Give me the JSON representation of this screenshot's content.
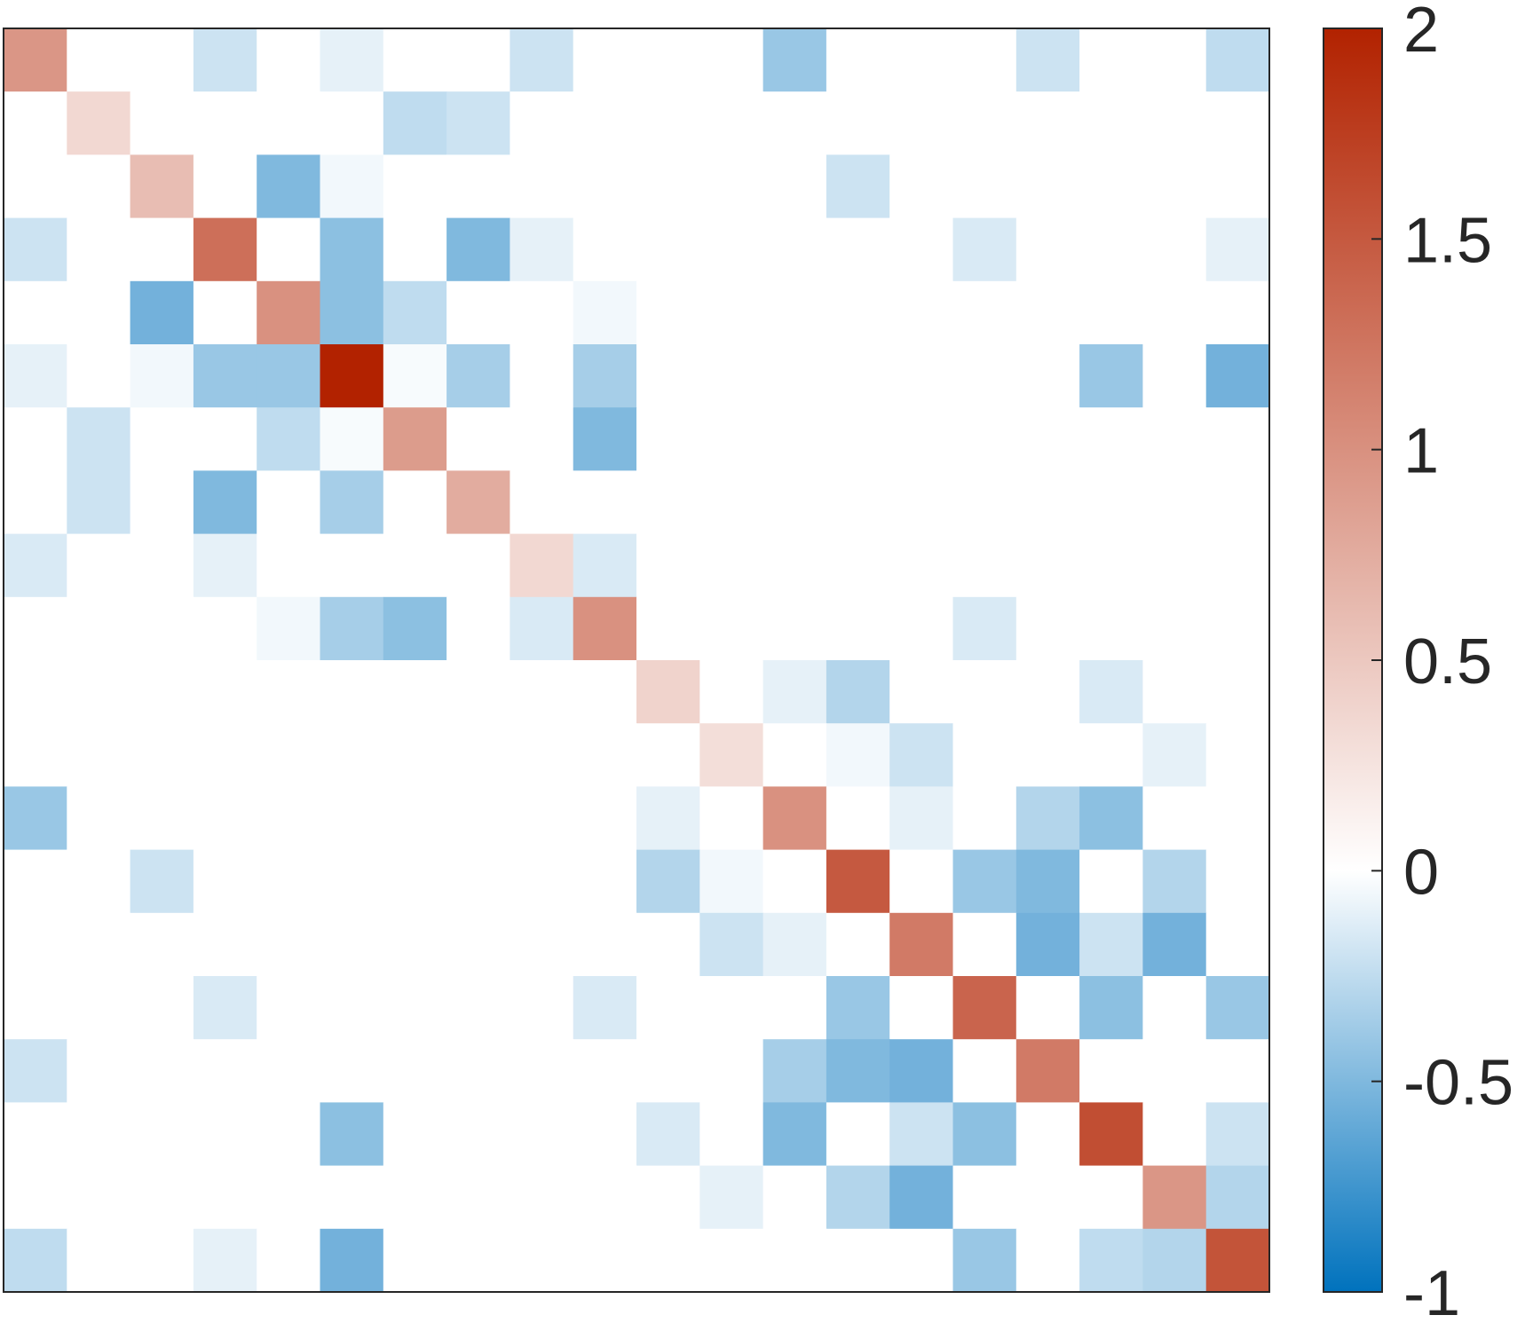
{
  "chart_data": {
    "type": "heatmap",
    "title": "",
    "xlabel": "",
    "ylabel": "",
    "rows": 20,
    "cols": 20,
    "values": [
      [
        0.95,
        0,
        0,
        -0.2,
        0,
        -0.1,
        0,
        0,
        -0.2,
        0,
        0,
        0,
        -0.4,
        0,
        0,
        0,
        -0.2,
        0,
        0,
        -0.25
      ],
      [
        0,
        0.35,
        0,
        0,
        0,
        0,
        -0.25,
        -0.2,
        0,
        0,
        0,
        0,
        0,
        0,
        0,
        0,
        0,
        0,
        0,
        0
      ],
      [
        0,
        0,
        0.6,
        0,
        -0.5,
        -0.05,
        0,
        0,
        0,
        0,
        0,
        0,
        0,
        -0.2,
        0,
        0,
        0,
        0,
        0,
        0
      ],
      [
        -0.2,
        0,
        0,
        1.3,
        0,
        -0.45,
        0,
        -0.5,
        -0.1,
        0,
        0,
        0,
        0,
        0,
        0,
        -0.15,
        0,
        0,
        0,
        -0.1
      ],
      [
        0,
        0,
        -0.55,
        0,
        1.0,
        -0.45,
        -0.25,
        0,
        0,
        -0.05,
        0,
        0,
        0,
        0,
        0,
        0,
        0,
        0,
        0,
        0
      ],
      [
        -0.1,
        0,
        -0.05,
        -0.4,
        -0.4,
        2.0,
        -0.03,
        -0.35,
        0,
        -0.35,
        0,
        0,
        0,
        0,
        0,
        0,
        0,
        -0.4,
        0,
        -0.55
      ],
      [
        0,
        -0.2,
        0,
        0,
        -0.25,
        -0.03,
        0.9,
        0,
        0,
        -0.5,
        0,
        0,
        0,
        0,
        0,
        0,
        0,
        0,
        0,
        0
      ],
      [
        0,
        -0.2,
        0,
        -0.5,
        0,
        -0.35,
        0,
        0.75,
        0,
        0,
        0,
        0,
        0,
        0,
        0,
        0,
        0,
        0,
        0,
        0
      ],
      [
        -0.15,
        0,
        0,
        -0.1,
        0,
        0,
        0,
        0,
        0.35,
        -0.15,
        0,
        0,
        0,
        0,
        0,
        0,
        0,
        0,
        0,
        0
      ],
      [
        0,
        0,
        0,
        0,
        -0.05,
        -0.35,
        -0.45,
        0,
        -0.15,
        1.0,
        0,
        0,
        0,
        0,
        0,
        -0.15,
        0,
        0,
        0,
        0
      ],
      [
        0,
        0,
        0,
        0,
        0,
        0,
        0,
        0,
        0,
        0,
        0.4,
        0,
        -0.1,
        -0.3,
        0,
        0,
        0,
        -0.15,
        0,
        0
      ],
      [
        0,
        0,
        0,
        0,
        0,
        0,
        0,
        0,
        0,
        0,
        0,
        0.3,
        0,
        -0.05,
        -0.2,
        0,
        0,
        0,
        -0.1,
        0
      ],
      [
        -0.4,
        0,
        0,
        0,
        0,
        0,
        0,
        0,
        0,
        0,
        -0.1,
        0,
        1.0,
        0,
        -0.1,
        0,
        -0.3,
        -0.45,
        0,
        0
      ],
      [
        0,
        0,
        -0.2,
        0,
        0,
        0,
        0,
        0,
        0,
        0,
        -0.3,
        -0.05,
        0,
        1.5,
        0,
        -0.4,
        -0.5,
        0,
        -0.3,
        0
      ],
      [
        0,
        0,
        0,
        0,
        0,
        0,
        0,
        0,
        0,
        0,
        0,
        -0.2,
        -0.1,
        0,
        1.2,
        0,
        -0.55,
        -0.2,
        -0.55,
        0
      ],
      [
        0,
        0,
        0,
        -0.15,
        0,
        0,
        0,
        0,
        0,
        -0.15,
        0,
        0,
        0,
        -0.4,
        0,
        1.4,
        0,
        -0.45,
        0,
        -0.4
      ],
      [
        -0.2,
        0,
        0,
        0,
        0,
        0,
        0,
        0,
        0,
        0,
        0,
        0,
        -0.35,
        -0.5,
        -0.55,
        0,
        1.2,
        0,
        0,
        0
      ],
      [
        0,
        0,
        0,
        0,
        0,
        -0.45,
        0,
        0,
        0,
        0,
        -0.15,
        0,
        -0.5,
        0,
        -0.2,
        -0.45,
        0,
        1.6,
        0,
        -0.2
      ],
      [
        0,
        0,
        0,
        0,
        0,
        0,
        0,
        0,
        0,
        0,
        0,
        -0.1,
        0,
        -0.3,
        -0.55,
        0,
        0,
        0,
        0.95,
        -0.3
      ],
      [
        -0.25,
        0,
        0,
        -0.1,
        0,
        -0.55,
        0,
        0,
        0,
        0,
        0,
        0,
        0,
        0,
        0,
        -0.4,
        0,
        -0.25,
        -0.3,
        1.55
      ]
    ],
    "colorbar": {
      "min": -1,
      "max": 2,
      "ticks": [
        2,
        1.5,
        1,
        0.5,
        0,
        -0.5,
        -1
      ],
      "tick_labels": [
        "2",
        "1.5",
        "1",
        "0.5",
        "0",
        "-0.5",
        "-1"
      ],
      "colors": {
        "negative_end": "#0072bd",
        "zero": "#ffffff",
        "positive_end": "#b22200"
      }
    },
    "grid": false,
    "axes_ticks_visible": false
  }
}
